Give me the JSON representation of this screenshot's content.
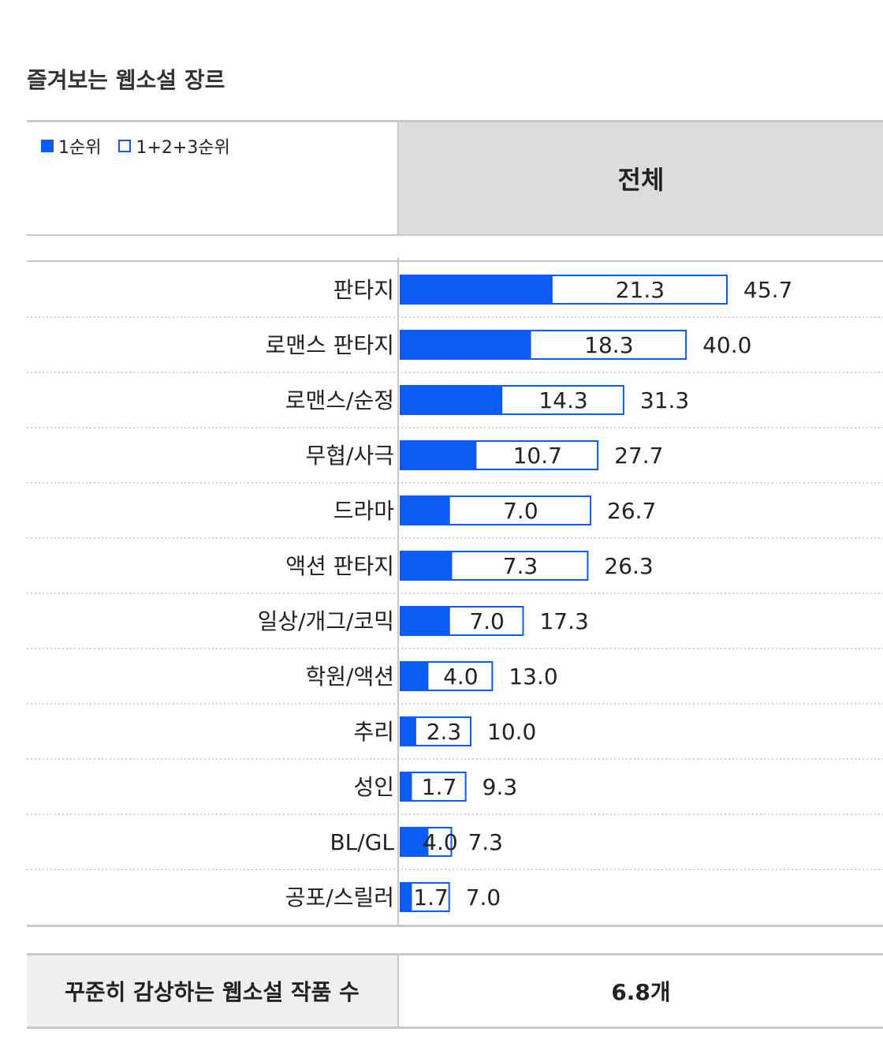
{
  "page": {
    "title": "즐겨보는 웹소설 장르"
  },
  "legend": {
    "first": "1순위",
    "top3": "1+2+3순위"
  },
  "header": {
    "column": "전체"
  },
  "chart_data": {
    "type": "bar",
    "orientation": "horizontal",
    "categories": [
      "판타지",
      "로맨스 판타지",
      "로맨스/순정",
      "무협/사극",
      "드라마",
      "액션 판타지",
      "일상/개그/코믹",
      "학원/액션",
      "추리",
      "성인",
      "BL/GL",
      "공포/스릴러"
    ],
    "series": [
      {
        "name": "1순위",
        "values": [
          21.3,
          18.3,
          14.3,
          10.7,
          7.0,
          7.3,
          7.0,
          4.0,
          2.3,
          1.7,
          4.0,
          1.7
        ],
        "labels": [
          "21.3",
          "18.3",
          "14.3",
          "10.7",
          "7.0",
          "7.3",
          "7.0",
          "4.0",
          "2.3",
          "1.7",
          "4.0",
          "1.7"
        ]
      },
      {
        "name": "1+2+3순위",
        "values": [
          45.7,
          40.0,
          31.3,
          27.7,
          26.7,
          26.3,
          17.3,
          13.0,
          10.0,
          9.3,
          7.3,
          7.0
        ],
        "labels": [
          "45.7",
          "40.0",
          "31.3",
          "27.7",
          "26.7",
          "26.3",
          "17.3",
          "13.0",
          "10.0",
          "9.3",
          "7.3",
          "7.0"
        ]
      }
    ],
    "colors": {
      "filled": "#0a5cf5",
      "outline": "#0a5cf5"
    },
    "xlim": [
      0,
      45.7
    ],
    "grid": false,
    "legend_position": "top-left"
  },
  "footer": {
    "label": "꾸준히 감상하는 웹소설 작품 수",
    "value": "6.8개"
  }
}
